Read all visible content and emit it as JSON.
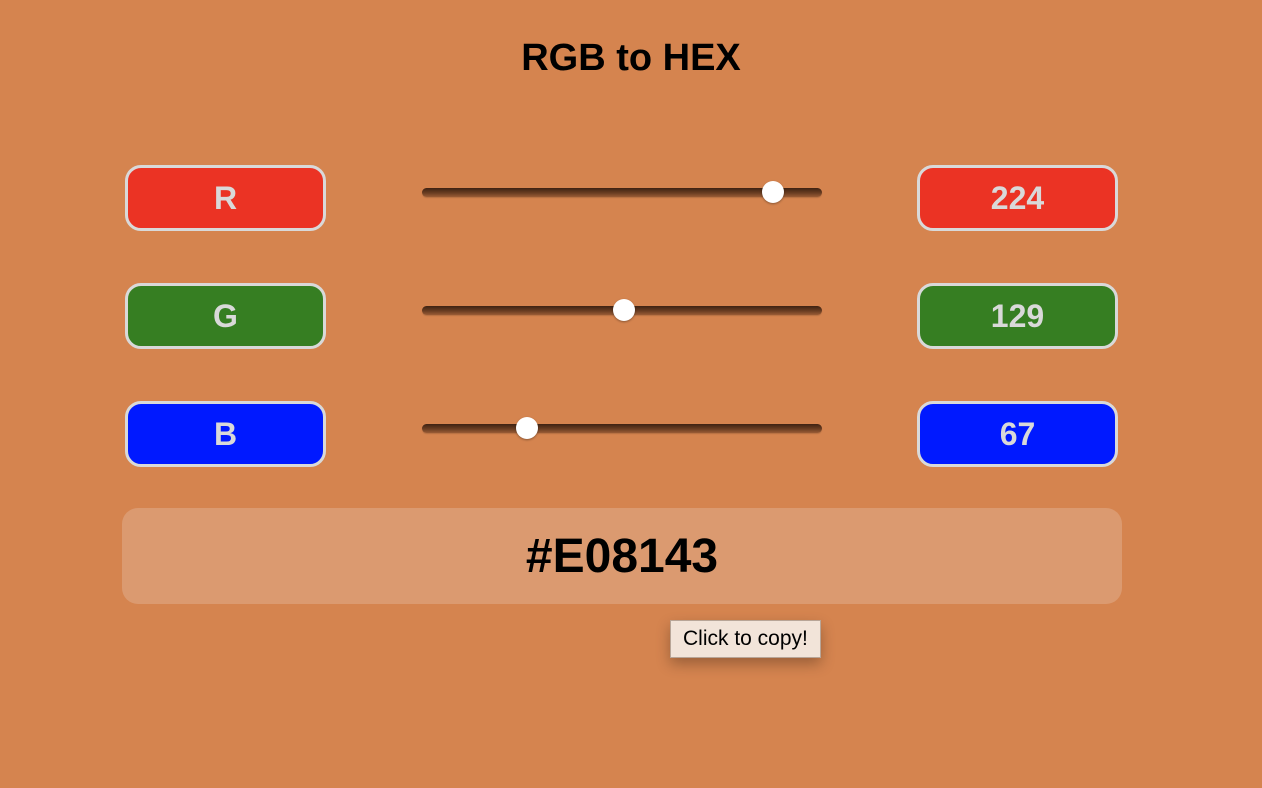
{
  "title": "RGB to HEX",
  "colors": {
    "background": "#D5844F",
    "red_channel": "#EB3324",
    "green_channel": "#367E22",
    "blue_channel": "#0019FF",
    "badge_border": "#D9D9D9",
    "hex_box": "#DB9A70",
    "tooltip_bg": "#F2E4D9"
  },
  "channels": {
    "r": {
      "label": "R",
      "value": "224",
      "slider_fraction": 0.878
    },
    "g": {
      "label": "G",
      "value": "129",
      "slider_fraction": 0.506
    },
    "b": {
      "label": "B",
      "value": "67",
      "slider_fraction": 0.263
    }
  },
  "hex": {
    "value": "#E08143",
    "tooltip": "Click to copy!"
  }
}
